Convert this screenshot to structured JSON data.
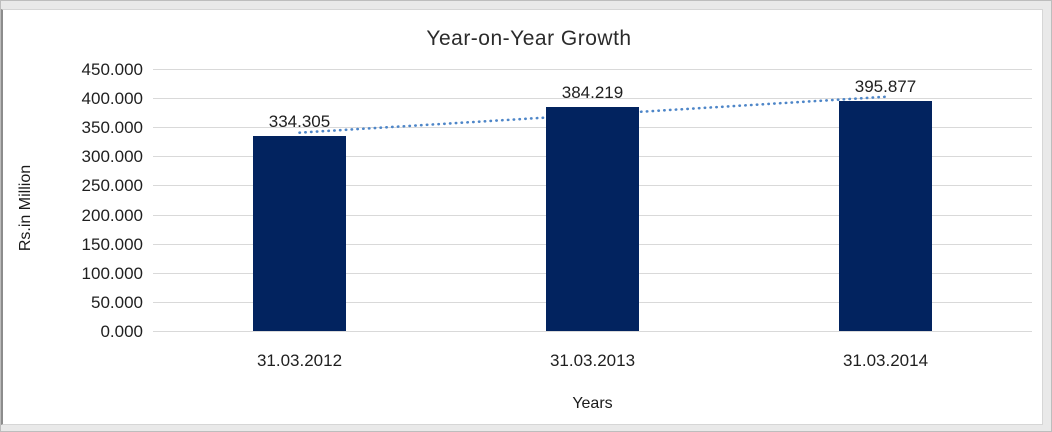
{
  "chart_data": {
    "type": "bar",
    "title": "Year-on-Year Growth",
    "xlabel": "Years",
    "ylabel": "Rs.in Million",
    "categories": [
      "31.03.2012",
      "31.03.2013",
      "31.03.2014"
    ],
    "values": [
      334.305,
      384.219,
      395.877
    ],
    "data_labels": [
      "334.305",
      "384.219",
      "395.877"
    ],
    "y_ticks": [
      {
        "value": 0,
        "label": "0.000"
      },
      {
        "value": 50,
        "label": "50.000"
      },
      {
        "value": 100,
        "label": "100.000"
      },
      {
        "value": 150,
        "label": "150.000"
      },
      {
        "value": 200,
        "label": "200.000"
      },
      {
        "value": 250,
        "label": "250.000"
      },
      {
        "value": 300,
        "label": "300.000"
      },
      {
        "value": 350,
        "label": "350.000"
      },
      {
        "value": 400,
        "label": "400.000"
      },
      {
        "value": 450,
        "label": "450.000"
      }
    ],
    "ylim": [
      0,
      450
    ],
    "grid": true,
    "legend": "none",
    "trendline": {
      "type": "linear",
      "style": "dotted"
    },
    "colors": {
      "bar": "#02235f",
      "gridline": "#d9d9d9",
      "trend": "#4e86c8",
      "text": "#1f1f1f"
    }
  }
}
